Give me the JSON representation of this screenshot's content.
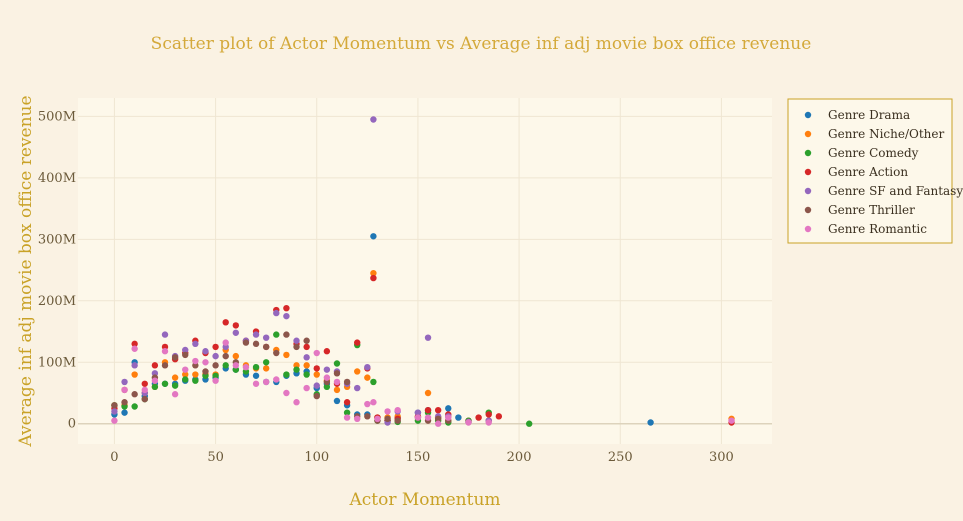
{
  "chart_data": {
    "type": "scatter",
    "title": "Scatter plot of Actor Momentum vs Average inf adj movie box office revenue",
    "xlabel": "Actor Momentum",
    "ylabel": "Average inf adj movie box office revenue",
    "xlim": [
      -18,
      325
    ],
    "ylim": [
      -33000000,
      530000000
    ],
    "xticks": [
      0,
      50,
      100,
      150,
      200,
      250,
      300
    ],
    "xtick_labels": [
      "0",
      "50",
      "100",
      "150",
      "200",
      "250",
      "300"
    ],
    "yticks": [
      0,
      100000000,
      200000000,
      300000000,
      400000000,
      500000000
    ],
    "ytick_labels": [
      "0",
      "100M",
      "200M",
      "300M",
      "400M",
      "500M"
    ],
    "grid": true,
    "legend": "right",
    "colors": {
      "background": "#faf2e3",
      "plot_background": "#fdf8ea",
      "grid": "#efe6d2",
      "zero_line": "#ddd3bc",
      "title": "#d4a93a",
      "axis_title": "#c9a227",
      "tick": "#6b5a3a",
      "legend_border": "#c9a227",
      "legend_bg": "#fdf8ea"
    },
    "series": [
      {
        "name": "Genre Drama",
        "color": "#1f77b4",
        "points": [
          [
            0,
            15000000
          ],
          [
            5,
            18000000
          ],
          [
            10,
            100000000
          ],
          [
            15,
            45000000
          ],
          [
            20,
            65000000
          ],
          [
            25,
            65000000
          ],
          [
            30,
            65000000
          ],
          [
            35,
            70000000
          ],
          [
            40,
            72000000
          ],
          [
            45,
            72000000
          ],
          [
            50,
            75000000
          ],
          [
            55,
            90000000
          ],
          [
            60,
            88000000
          ],
          [
            65,
            80000000
          ],
          [
            70,
            78000000
          ],
          [
            75,
            68000000
          ],
          [
            80,
            68000000
          ],
          [
            85,
            78000000
          ],
          [
            90,
            82000000
          ],
          [
            95,
            85000000
          ],
          [
            100,
            58000000
          ],
          [
            105,
            65000000
          ],
          [
            110,
            37000000
          ],
          [
            115,
            30000000
          ],
          [
            120,
            15000000
          ],
          [
            125,
            15000000
          ],
          [
            128,
            305000000
          ],
          [
            130,
            10000000
          ],
          [
            135,
            5000000
          ],
          [
            140,
            10000000
          ],
          [
            150,
            18000000
          ],
          [
            155,
            22000000
          ],
          [
            160,
            10000000
          ],
          [
            165,
            25000000
          ],
          [
            170,
            10000000
          ],
          [
            175,
            3000000
          ],
          [
            185,
            5000000
          ],
          [
            265,
            2000000
          ]
        ]
      },
      {
        "name": "Genre Niche/Other",
        "color": "#ff7f0e",
        "points": [
          [
            0,
            30000000
          ],
          [
            5,
            30000000
          ],
          [
            10,
            80000000
          ],
          [
            15,
            50000000
          ],
          [
            20,
            60000000
          ],
          [
            25,
            100000000
          ],
          [
            30,
            75000000
          ],
          [
            35,
            80000000
          ],
          [
            40,
            80000000
          ],
          [
            45,
            80000000
          ],
          [
            50,
            80000000
          ],
          [
            55,
            120000000
          ],
          [
            60,
            110000000
          ],
          [
            65,
            95000000
          ],
          [
            70,
            90000000
          ],
          [
            75,
            90000000
          ],
          [
            80,
            120000000
          ],
          [
            85,
            112000000
          ],
          [
            90,
            95000000
          ],
          [
            95,
            95000000
          ],
          [
            100,
            80000000
          ],
          [
            105,
            70000000
          ],
          [
            110,
            55000000
          ],
          [
            115,
            60000000
          ],
          [
            120,
            85000000
          ],
          [
            125,
            75000000
          ],
          [
            128,
            245000000
          ],
          [
            130,
            10000000
          ],
          [
            135,
            10000000
          ],
          [
            140,
            12000000
          ],
          [
            150,
            12000000
          ],
          [
            155,
            50000000
          ],
          [
            160,
            10000000
          ],
          [
            165,
            5000000
          ],
          [
            175,
            5000000
          ],
          [
            185,
            5000000
          ],
          [
            305,
            8000000
          ]
        ]
      },
      {
        "name": "Genre Comedy",
        "color": "#2ca02c",
        "points": [
          [
            0,
            30000000
          ],
          [
            5,
            28000000
          ],
          [
            10,
            28000000
          ],
          [
            15,
            40000000
          ],
          [
            20,
            60000000
          ],
          [
            25,
            65000000
          ],
          [
            30,
            62000000
          ],
          [
            35,
            72000000
          ],
          [
            40,
            70000000
          ],
          [
            45,
            78000000
          ],
          [
            50,
            78000000
          ],
          [
            55,
            95000000
          ],
          [
            60,
            88000000
          ],
          [
            65,
            85000000
          ],
          [
            70,
            92000000
          ],
          [
            75,
            100000000
          ],
          [
            80,
            145000000
          ],
          [
            85,
            80000000
          ],
          [
            90,
            88000000
          ],
          [
            95,
            80000000
          ],
          [
            100,
            48000000
          ],
          [
            105,
            60000000
          ],
          [
            110,
            98000000
          ],
          [
            115,
            18000000
          ],
          [
            120,
            128000000
          ],
          [
            128,
            68000000
          ],
          [
            130,
            5000000
          ],
          [
            135,
            5000000
          ],
          [
            140,
            3000000
          ],
          [
            150,
            5000000
          ],
          [
            155,
            18000000
          ],
          [
            160,
            5000000
          ],
          [
            165,
            2000000
          ],
          [
            175,
            5000000
          ],
          [
            185,
            18000000
          ],
          [
            205,
            0
          ]
        ]
      },
      {
        "name": "Genre Action",
        "color": "#d62728",
        "points": [
          [
            0,
            25000000
          ],
          [
            5,
            55000000
          ],
          [
            10,
            130000000
          ],
          [
            15,
            65000000
          ],
          [
            20,
            95000000
          ],
          [
            25,
            125000000
          ],
          [
            30,
            105000000
          ],
          [
            35,
            115000000
          ],
          [
            40,
            135000000
          ],
          [
            45,
            115000000
          ],
          [
            50,
            125000000
          ],
          [
            55,
            165000000
          ],
          [
            60,
            160000000
          ],
          [
            65,
            135000000
          ],
          [
            70,
            150000000
          ],
          [
            75,
            125000000
          ],
          [
            80,
            185000000
          ],
          [
            85,
            188000000
          ],
          [
            90,
            130000000
          ],
          [
            95,
            125000000
          ],
          [
            100,
            90000000
          ],
          [
            105,
            118000000
          ],
          [
            110,
            65000000
          ],
          [
            115,
            35000000
          ],
          [
            120,
            132000000
          ],
          [
            125,
            90000000
          ],
          [
            128,
            237000000
          ],
          [
            130,
            10000000
          ],
          [
            135,
            5000000
          ],
          [
            140,
            8000000
          ],
          [
            150,
            12000000
          ],
          [
            155,
            22000000
          ],
          [
            160,
            22000000
          ],
          [
            165,
            15000000
          ],
          [
            175,
            3000000
          ],
          [
            180,
            10000000
          ],
          [
            185,
            15000000
          ],
          [
            190,
            12000000
          ],
          [
            305,
            2000000
          ]
        ]
      },
      {
        "name": "Genre SF and Fantasy",
        "color": "#9467bd",
        "points": [
          [
            0,
            20000000
          ],
          [
            5,
            68000000
          ],
          [
            10,
            95000000
          ],
          [
            15,
            50000000
          ],
          [
            20,
            82000000
          ],
          [
            25,
            145000000
          ],
          [
            30,
            110000000
          ],
          [
            35,
            120000000
          ],
          [
            40,
            130000000
          ],
          [
            45,
            118000000
          ],
          [
            50,
            110000000
          ],
          [
            55,
            125000000
          ],
          [
            60,
            148000000
          ],
          [
            65,
            135000000
          ],
          [
            70,
            145000000
          ],
          [
            75,
            140000000
          ],
          [
            80,
            180000000
          ],
          [
            85,
            175000000
          ],
          [
            90,
            135000000
          ],
          [
            95,
            108000000
          ],
          [
            100,
            62000000
          ],
          [
            105,
            88000000
          ],
          [
            110,
            85000000
          ],
          [
            115,
            65000000
          ],
          [
            120,
            58000000
          ],
          [
            125,
            92000000
          ],
          [
            128,
            495000000
          ],
          [
            135,
            2000000
          ],
          [
            140,
            20000000
          ],
          [
            150,
            18000000
          ],
          [
            155,
            140000000
          ],
          [
            160,
            12000000
          ],
          [
            165,
            12000000
          ],
          [
            175,
            3000000
          ],
          [
            185,
            5000000
          ]
        ]
      },
      {
        "name": "Genre Thriller",
        "color": "#8c564b",
        "points": [
          [
            0,
            30000000
          ],
          [
            5,
            35000000
          ],
          [
            10,
            48000000
          ],
          [
            15,
            40000000
          ],
          [
            20,
            75000000
          ],
          [
            25,
            95000000
          ],
          [
            30,
            108000000
          ],
          [
            35,
            112000000
          ],
          [
            40,
            95000000
          ],
          [
            45,
            85000000
          ],
          [
            50,
            95000000
          ],
          [
            55,
            110000000
          ],
          [
            60,
            100000000
          ],
          [
            65,
            132000000
          ],
          [
            70,
            130000000
          ],
          [
            75,
            125000000
          ],
          [
            80,
            115000000
          ],
          [
            85,
            145000000
          ],
          [
            90,
            125000000
          ],
          [
            95,
            135000000
          ],
          [
            100,
            45000000
          ],
          [
            105,
            68000000
          ],
          [
            110,
            82000000
          ],
          [
            115,
            68000000
          ],
          [
            120,
            12000000
          ],
          [
            125,
            12000000
          ],
          [
            130,
            5000000
          ],
          [
            135,
            8000000
          ],
          [
            140,
            5000000
          ],
          [
            150,
            10000000
          ],
          [
            155,
            5000000
          ],
          [
            160,
            8000000
          ],
          [
            165,
            5000000
          ]
        ]
      },
      {
        "name": "Genre Romantic",
        "color": "#e377c2",
        "points": [
          [
            0,
            5000000
          ],
          [
            5,
            55000000
          ],
          [
            10,
            122000000
          ],
          [
            15,
            55000000
          ],
          [
            20,
            70000000
          ],
          [
            25,
            118000000
          ],
          [
            30,
            48000000
          ],
          [
            35,
            88000000
          ],
          [
            40,
            102000000
          ],
          [
            45,
            100000000
          ],
          [
            50,
            70000000
          ],
          [
            55,
            132000000
          ],
          [
            60,
            95000000
          ],
          [
            65,
            92000000
          ],
          [
            70,
            65000000
          ],
          [
            75,
            68000000
          ],
          [
            80,
            72000000
          ],
          [
            85,
            50000000
          ],
          [
            90,
            35000000
          ],
          [
            95,
            58000000
          ],
          [
            100,
            115000000
          ],
          [
            105,
            75000000
          ],
          [
            110,
            68000000
          ],
          [
            115,
            10000000
          ],
          [
            120,
            8000000
          ],
          [
            125,
            32000000
          ],
          [
            128,
            35000000
          ],
          [
            130,
            8000000
          ],
          [
            135,
            20000000
          ],
          [
            140,
            22000000
          ],
          [
            150,
            10000000
          ],
          [
            155,
            10000000
          ],
          [
            160,
            0
          ],
          [
            165,
            10000000
          ],
          [
            175,
            2000000
          ],
          [
            185,
            2000000
          ],
          [
            305,
            5000000
          ]
        ]
      }
    ]
  }
}
